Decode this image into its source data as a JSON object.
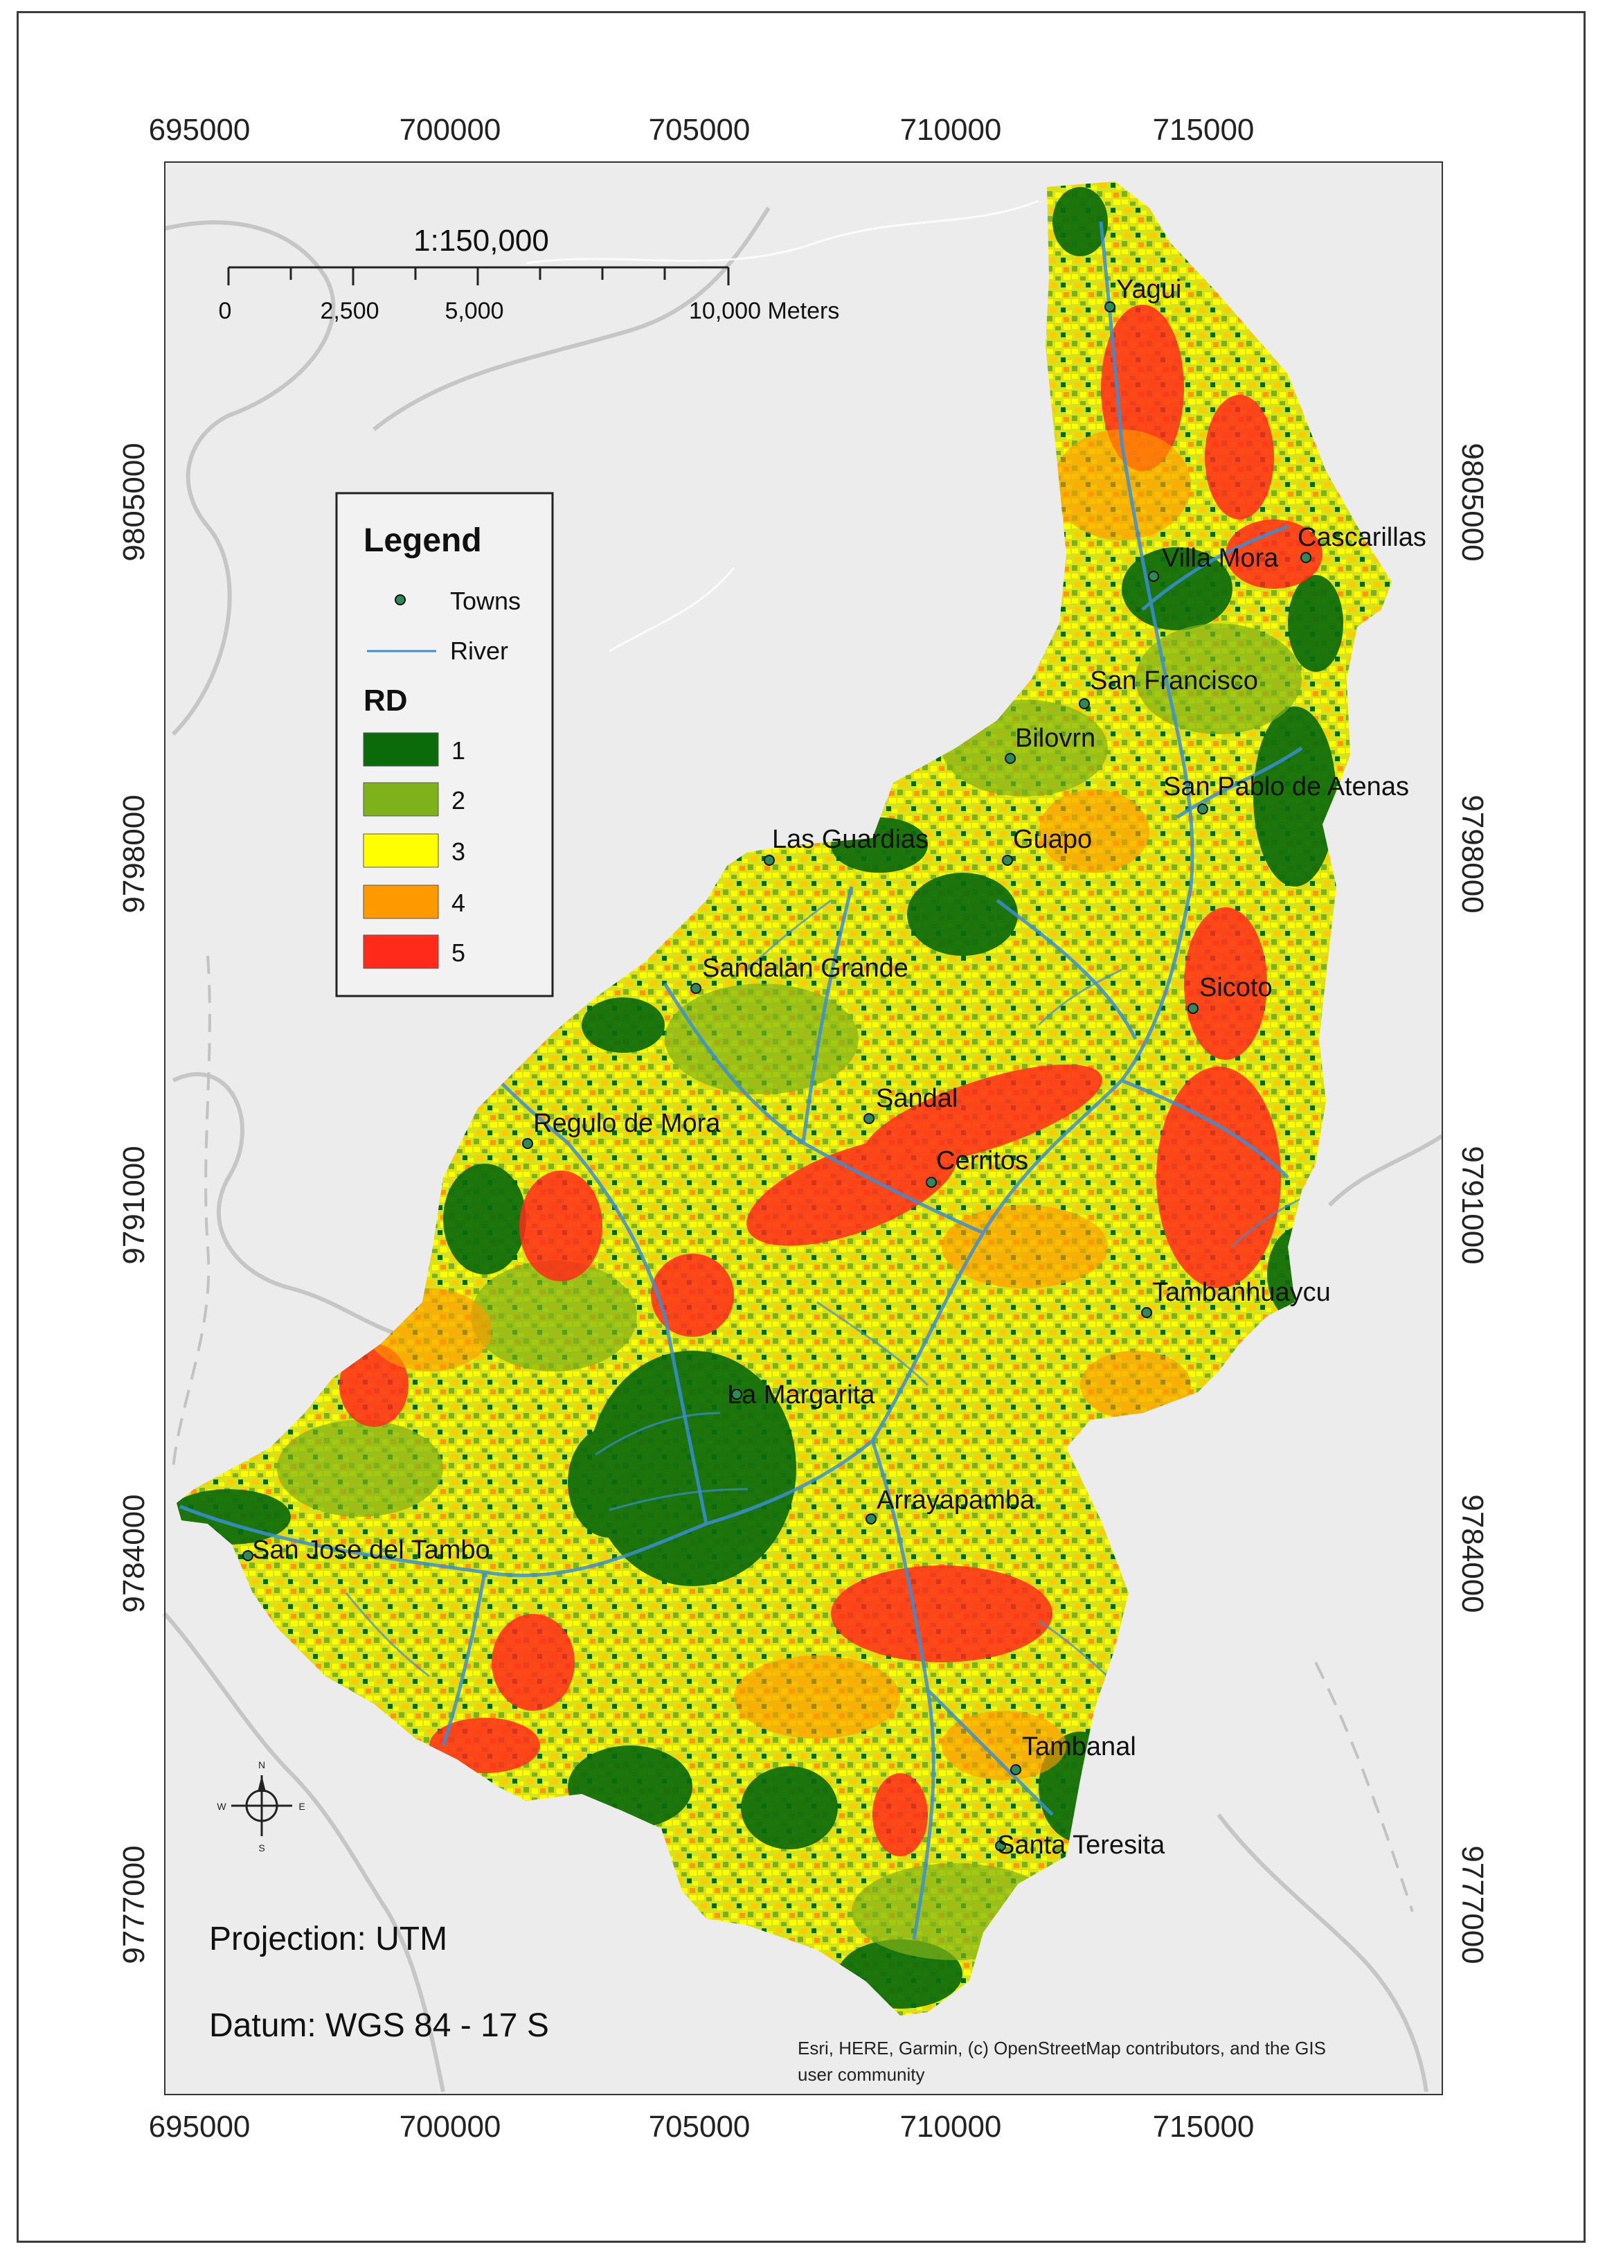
{
  "map": {
    "x_coords": [
      "695000",
      "700000",
      "705000",
      "710000",
      "715000"
    ],
    "y_coords": [
      "9805000",
      "9798000",
      "9791000",
      "9784000",
      "9777000"
    ],
    "scale": {
      "ratio": "1:150,000",
      "ticks": [
        "0",
        "2,500",
        "5,000",
        "10,000 Meters"
      ]
    },
    "legend": {
      "title": "Legend",
      "towns_label": "Towns",
      "river_label": "River",
      "rd_title": "RD",
      "classes": [
        {
          "label": "1",
          "color": "#0b6b0b"
        },
        {
          "label": "2",
          "color": "#7fb21a"
        },
        {
          "label": "3",
          "color": "#ffff00"
        },
        {
          "label": "4",
          "color": "#ff9900"
        },
        {
          "label": "5",
          "color": "#ff2a1a"
        }
      ],
      "town_color": "#2e8b57",
      "river_color": "#3a8fd6"
    },
    "towns": [
      "Yagui",
      "Cascarillas",
      "Villa Mora",
      "San Francisco",
      "Bilovrn",
      "San Pablo de Atenas",
      "Las Guardias",
      "Guapo",
      "Sandalan Grande",
      "Sicoto",
      "Regulo de Mora",
      "Sandal",
      "Cerritos",
      "Tambanhuaycu",
      "La Margarita",
      "Arrayapamba",
      "San Jose del Tambo",
      "Tambanal",
      "Santa Teresita"
    ],
    "projection": "Projection: UTM",
    "datum": "Datum: WGS 84 - 17 S",
    "credits_line1": "Esri, HERE, Garmin, (c) OpenStreetMap contributors, and the GIS",
    "credits_line2": "user community",
    "compass": {
      "n": "N",
      "s": "S",
      "e": "E",
      "w": "W"
    }
  }
}
